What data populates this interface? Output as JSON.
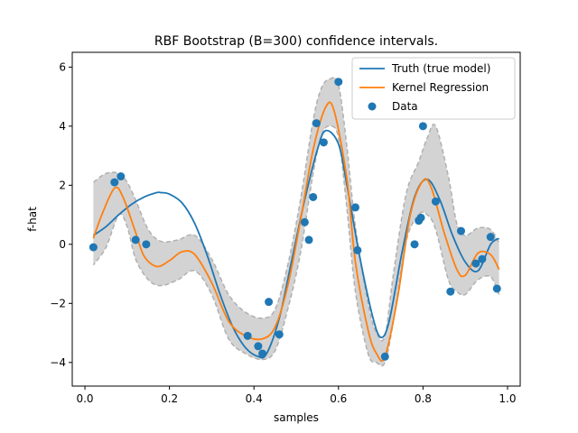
{
  "chart_data": {
    "type": "line",
    "title": "RBF Bootstrap (B=300) confidence intervals.",
    "xlabel": "samples",
    "ylabel": "f-hat",
    "xlim": [
      -0.03,
      1.03
    ],
    "ylim": [
      -4.8,
      6.5
    ],
    "x_ticks": [
      0.0,
      0.2,
      0.4,
      0.6,
      0.8,
      1.0
    ],
    "x_tick_labels": [
      "0.0",
      "0.2",
      "0.4",
      "0.6",
      "0.8",
      "1.0"
    ],
    "y_ticks": [
      -4,
      -2,
      0,
      2,
      4,
      6
    ],
    "y_tick_labels": [
      "−4",
      "−2",
      "0",
      "2",
      "4",
      "6"
    ],
    "grid": false,
    "legend_position": "top-right",
    "colors": {
      "truth": "#1f77b4",
      "kernel": "#ff7f0e",
      "data": "#1f77b4",
      "band_fill": "#d3d3d3",
      "band_edge": "#b0b0b0"
    },
    "series": [
      {
        "name": "Truth (true model)",
        "kind": "line",
        "x": [
          0.02,
          0.05,
          0.08,
          0.11,
          0.14,
          0.17,
          0.18,
          0.2,
          0.23,
          0.26,
          0.29,
          0.32,
          0.35,
          0.38,
          0.41,
          0.43,
          0.46,
          0.49,
          0.52,
          0.55,
          0.57,
          0.6,
          0.62,
          0.65,
          0.68,
          0.7,
          0.72,
          0.75,
          0.78,
          0.81,
          0.84,
          0.87,
          0.9,
          0.93,
          0.96,
          0.98
        ],
        "y": [
          0.3,
          0.6,
          1.0,
          1.35,
          1.6,
          1.75,
          1.75,
          1.7,
          1.4,
          0.7,
          -0.4,
          -1.7,
          -2.8,
          -3.5,
          -3.8,
          -3.7,
          -2.5,
          -0.5,
          1.5,
          3.2,
          3.85,
          3.4,
          2.0,
          -0.4,
          -2.4,
          -3.15,
          -2.6,
          -0.3,
          1.6,
          2.2,
          1.5,
          0.3,
          -0.6,
          -0.9,
          0.0,
          0.2
        ]
      },
      {
        "name": "Kernel Regression",
        "kind": "line",
        "x": [
          0.02,
          0.04,
          0.07,
          0.09,
          0.12,
          0.14,
          0.17,
          0.2,
          0.23,
          0.26,
          0.3,
          0.34,
          0.38,
          0.42,
          0.45,
          0.48,
          0.51,
          0.54,
          0.57,
          0.59,
          0.62,
          0.64,
          0.67,
          0.69,
          0.71,
          0.74,
          0.77,
          0.8,
          0.82,
          0.85,
          0.88,
          0.9,
          0.93,
          0.96,
          0.98
        ],
        "y": [
          0.2,
          1.0,
          1.9,
          1.6,
          0.4,
          -0.4,
          -0.75,
          -0.55,
          -0.25,
          -0.35,
          -1.3,
          -2.6,
          -3.1,
          -3.2,
          -2.8,
          -1.4,
          0.8,
          3.2,
          4.65,
          4.5,
          2.2,
          -0.6,
          -2.9,
          -3.7,
          -3.8,
          -1.8,
          1.0,
          2.15,
          1.9,
          0.4,
          -0.85,
          -1.05,
          -0.3,
          -0.35,
          -0.85
        ]
      },
      {
        "name": "Data",
        "kind": "scatter",
        "x": [
          0.02,
          0.07,
          0.085,
          0.12,
          0.145,
          0.385,
          0.41,
          0.42,
          0.435,
          0.46,
          0.52,
          0.53,
          0.54,
          0.548,
          0.565,
          0.6,
          0.64,
          0.645,
          0.71,
          0.78,
          0.79,
          0.795,
          0.8,
          0.83,
          0.865,
          0.89,
          0.925,
          0.94,
          0.96,
          0.975
        ],
        "y": [
          -0.1,
          2.1,
          2.3,
          0.15,
          0.0,
          -3.1,
          -3.45,
          -3.7,
          -1.95,
          -3.05,
          0.75,
          0.15,
          1.6,
          4.1,
          3.45,
          5.5,
          1.25,
          -0.2,
          -3.8,
          0.0,
          0.8,
          0.9,
          4.0,
          1.45,
          -1.6,
          0.45,
          -0.65,
          -0.5,
          0.25,
          -1.5
        ]
      }
    ],
    "confidence_band": {
      "x": [
        0.02,
        0.05,
        0.08,
        0.1,
        0.12,
        0.15,
        0.18,
        0.22,
        0.26,
        0.3,
        0.34,
        0.38,
        0.42,
        0.45,
        0.48,
        0.51,
        0.54,
        0.56,
        0.58,
        0.6,
        0.62,
        0.64,
        0.67,
        0.69,
        0.71,
        0.73,
        0.76,
        0.79,
        0.81,
        0.83,
        0.86,
        0.88,
        0.9,
        0.93,
        0.96,
        0.98
      ],
      "upper": [
        2.1,
        2.4,
        2.4,
        2.1,
        1.5,
        0.5,
        0.1,
        0.15,
        0.3,
        -0.5,
        -1.7,
        -2.3,
        -2.5,
        -2.2,
        -0.7,
        1.5,
        4.2,
        5.3,
        5.6,
        5.4,
        3.3,
        0.6,
        -2.0,
        -3.0,
        -3.1,
        -1.0,
        1.7,
        2.8,
        3.6,
        4.0,
        2.3,
        0.7,
        0.3,
        0.55,
        0.5,
        0.05
      ],
      "lower": [
        -0.7,
        -0.1,
        1.0,
        0.6,
        -0.5,
        -1.2,
        -1.4,
        -1.2,
        -0.9,
        -1.7,
        -3.2,
        -3.7,
        -3.9,
        -3.6,
        -2.2,
        -0.3,
        2.4,
        3.7,
        4.0,
        3.6,
        1.2,
        -1.6,
        -3.7,
        -4.0,
        -4.0,
        -2.6,
        0.1,
        1.0,
        1.0,
        0.5,
        -1.2,
        -1.6,
        -1.7,
        -1.2,
        -1.1,
        -1.7
      ]
    }
  }
}
